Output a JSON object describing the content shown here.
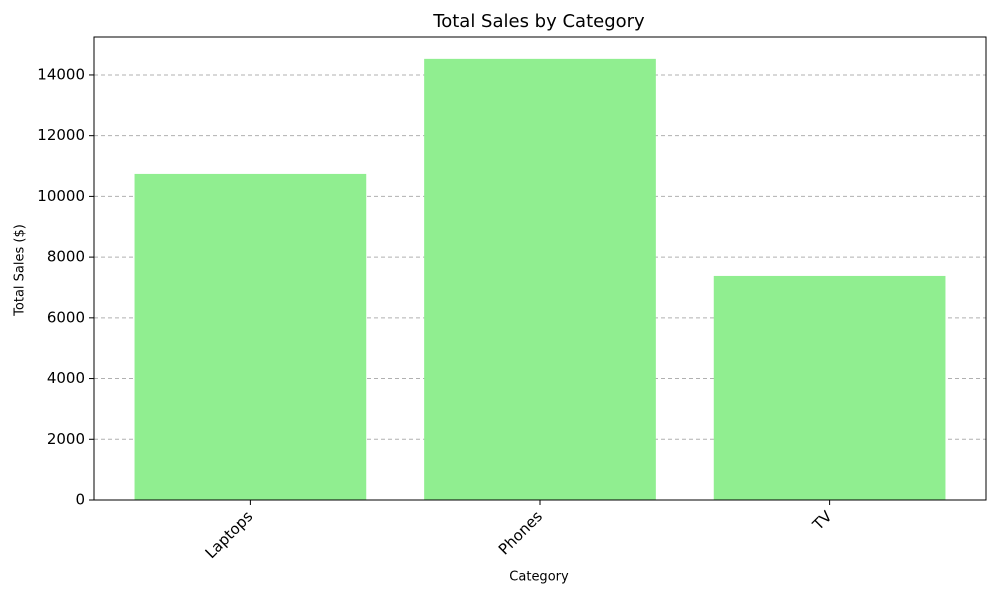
{
  "chart_data": {
    "type": "bar",
    "title": "Total Sales by Category",
    "xlabel": "Category",
    "ylabel": "Total Sales ($)",
    "categories": [
      "Laptops",
      "Phones",
      "TV"
    ],
    "values": [
      10740,
      14530,
      7380
    ],
    "color": "#90ee90",
    "ylim": [
      0,
      15250
    ],
    "yticks": [
      0,
      2000,
      4000,
      6000,
      8000,
      10000,
      12000,
      14000
    ],
    "grid": true
  }
}
